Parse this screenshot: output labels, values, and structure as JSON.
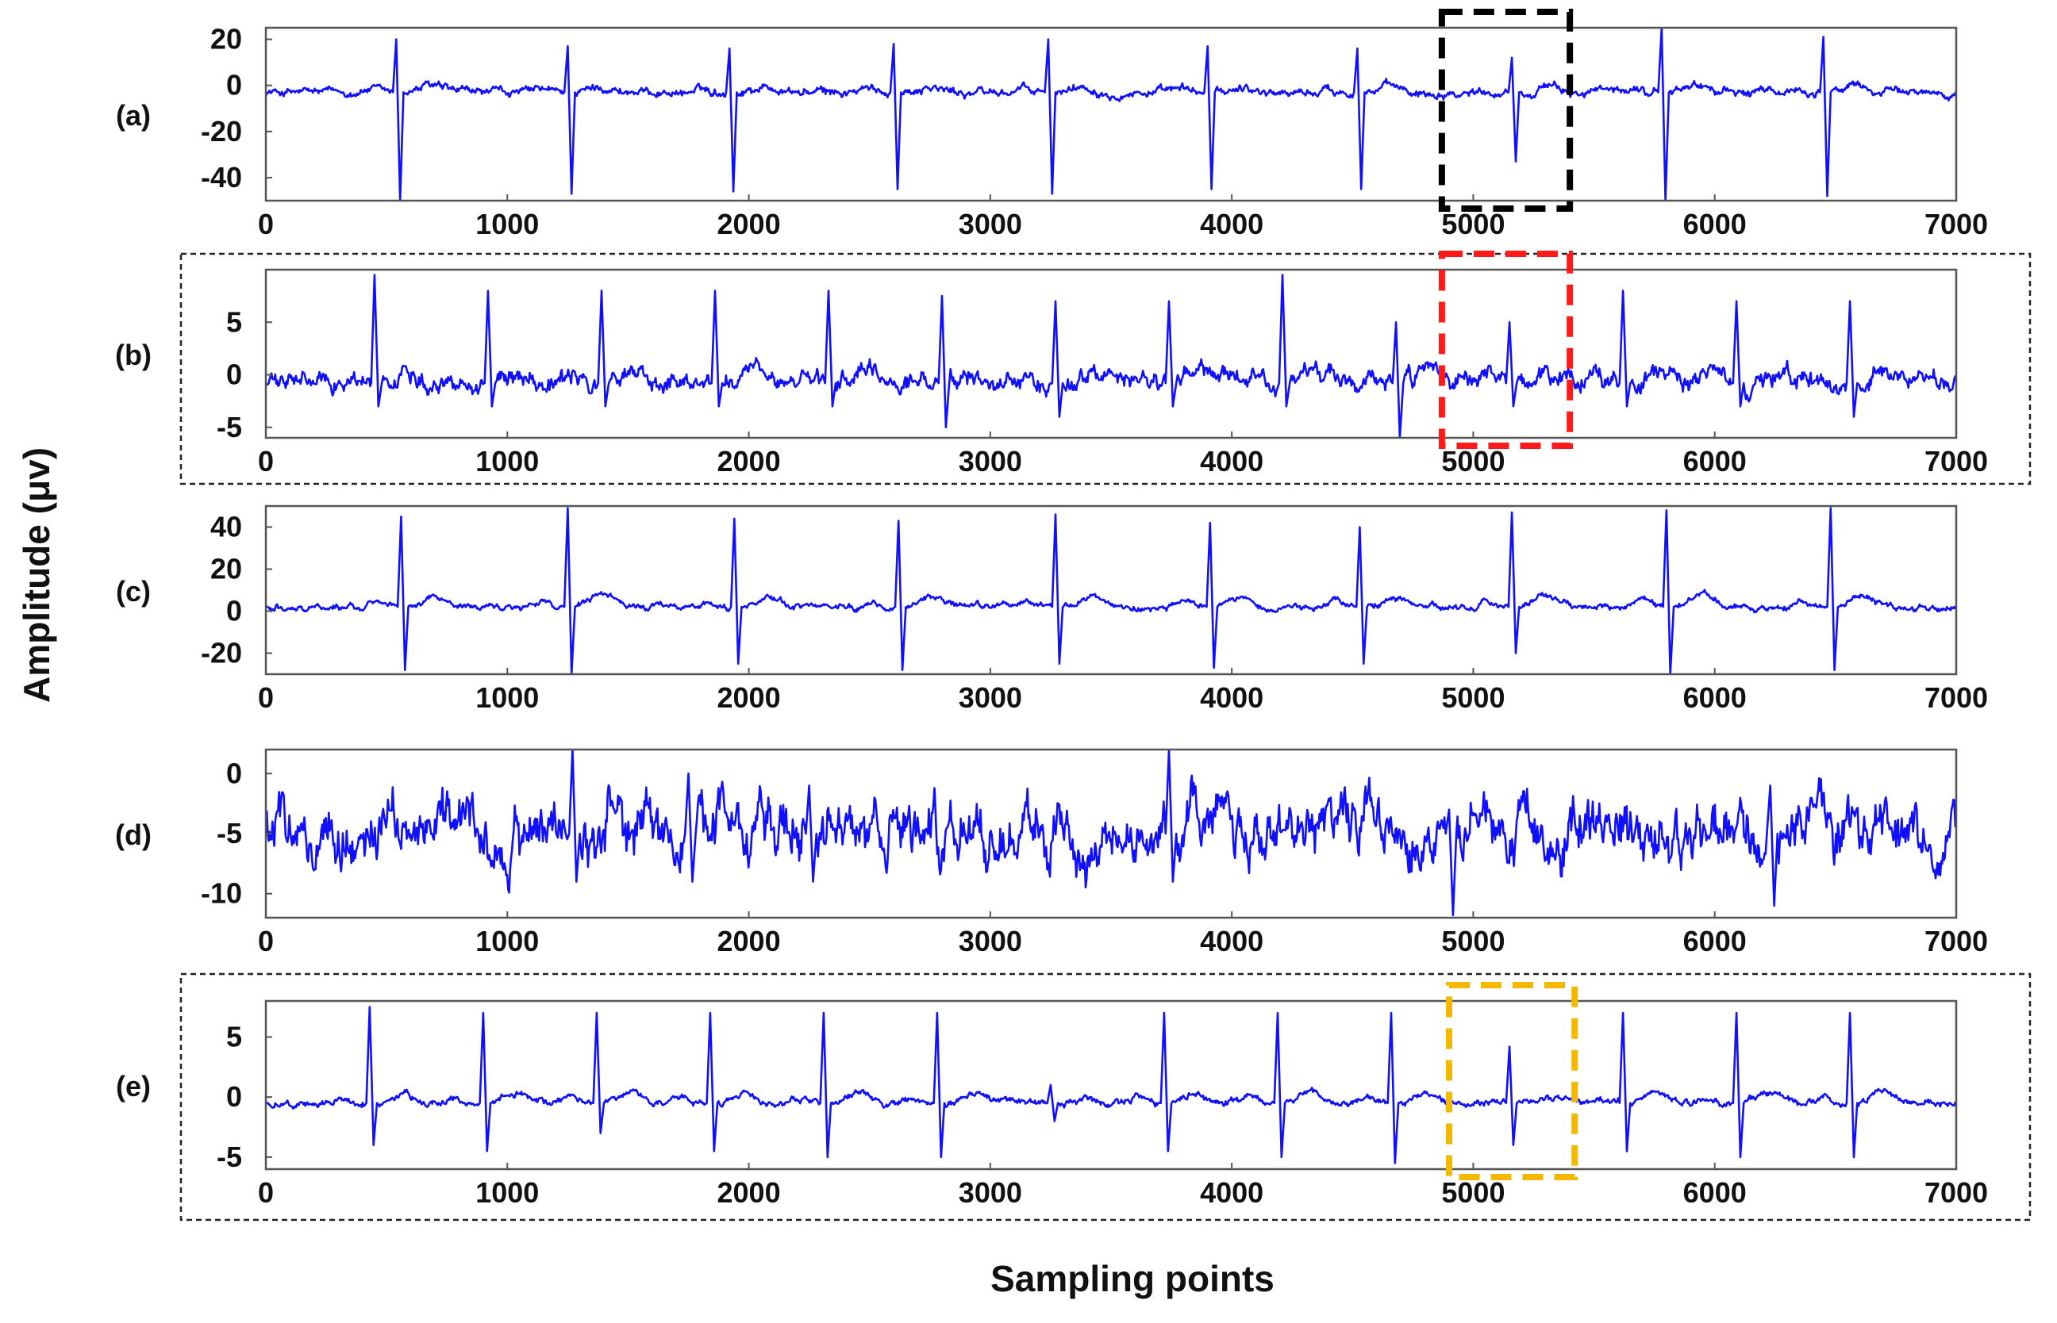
{
  "figure": {
    "ylabel": "Amplitude (μv)",
    "xlabel": "Sampling points",
    "signal_color": "#1010ff"
  },
  "chart_data": [
    {
      "type": "line",
      "panel": "(a)",
      "xlim": [
        0,
        7000
      ],
      "ylim": [
        -50,
        25
      ],
      "xticks": [
        0,
        1000,
        2000,
        3000,
        4000,
        5000,
        6000,
        7000
      ],
      "yticks": [
        20,
        0,
        -20,
        -40
      ],
      "baseline": -3,
      "noise": 2.2,
      "beats": [
        {
          "x": 540,
          "up": 20,
          "down": -50
        },
        {
          "x": 1250,
          "up": 17,
          "down": -47
        },
        {
          "x": 1920,
          "up": 16,
          "down": -46
        },
        {
          "x": 2600,
          "up": 18,
          "down": -45
        },
        {
          "x": 3240,
          "up": 20,
          "down": -47
        },
        {
          "x": 3900,
          "up": 17,
          "down": -45
        },
        {
          "x": 4520,
          "up": 16,
          "down": -45
        },
        {
          "x": 5160,
          "up": 12,
          "down": -33
        },
        {
          "x": 5780,
          "up": 25,
          "down": -50
        },
        {
          "x": 6450,
          "up": 21,
          "down": -48
        }
      ],
      "highlight": {
        "x0": 4870,
        "x1": 5400,
        "color": "#000000"
      },
      "frame": false
    },
    {
      "type": "line",
      "panel": "(b)",
      "xlim": [
        0,
        7000
      ],
      "ylim": [
        -6,
        10
      ],
      "xticks": [
        0,
        1000,
        2000,
        3000,
        4000,
        5000,
        6000,
        7000
      ],
      "yticks": [
        5,
        0,
        -5
      ],
      "baseline": -0.8,
      "noise": 1.1,
      "beats": [
        {
          "x": 450,
          "up": 9.5,
          "down": -3
        },
        {
          "x": 920,
          "up": 8,
          "down": -3
        },
        {
          "x": 1390,
          "up": 8,
          "down": -3
        },
        {
          "x": 1860,
          "up": 8,
          "down": -3
        },
        {
          "x": 2330,
          "up": 8,
          "down": -3
        },
        {
          "x": 2800,
          "up": 7.5,
          "down": -5
        },
        {
          "x": 3270,
          "up": 7,
          "down": -4
        },
        {
          "x": 3740,
          "up": 7,
          "down": -3
        },
        {
          "x": 4210,
          "up": 9.5,
          "down": -3
        },
        {
          "x": 4680,
          "up": 5,
          "down": -6
        },
        {
          "x": 5150,
          "up": 5,
          "down": -3
        },
        {
          "x": 5620,
          "up": 8,
          "down": -3
        },
        {
          "x": 6090,
          "up": 7,
          "down": -3
        },
        {
          "x": 6560,
          "up": 7,
          "down": -4
        }
      ],
      "highlight": {
        "x0": 4870,
        "x1": 5400,
        "color": "#ff1a1a"
      },
      "frame": true
    },
    {
      "type": "line",
      "panel": "(c)",
      "xlim": [
        0,
        7000
      ],
      "ylim": [
        -30,
        50
      ],
      "xticks": [
        0,
        1000,
        2000,
        3000,
        4000,
        5000,
        6000,
        7000
      ],
      "yticks": [
        40,
        20,
        0,
        -20
      ],
      "baseline": 2,
      "noise": 1.8,
      "beats": [
        {
          "x": 560,
          "up": 45,
          "down": -28
        },
        {
          "x": 1250,
          "up": 49,
          "down": -30
        },
        {
          "x": 1940,
          "up": 44,
          "down": -25
        },
        {
          "x": 2620,
          "up": 43,
          "down": -28
        },
        {
          "x": 3270,
          "up": 46,
          "down": -25
        },
        {
          "x": 3910,
          "up": 42,
          "down": -27
        },
        {
          "x": 4530,
          "up": 40,
          "down": -25
        },
        {
          "x": 5160,
          "up": 47,
          "down": -20
        },
        {
          "x": 5800,
          "up": 48,
          "down": -30
        },
        {
          "x": 6480,
          "up": 49,
          "down": -28
        }
      ],
      "highlight": null,
      "frame": false
    },
    {
      "type": "line",
      "panel": "(d)",
      "xlim": [
        0,
        7000
      ],
      "ylim": [
        -12,
        2
      ],
      "xticks": [
        0,
        1000,
        2000,
        3000,
        4000,
        5000,
        6000,
        7000
      ],
      "yticks": [
        0,
        -5,
        -10
      ],
      "baseline": -5,
      "noise": 2.8,
      "beats": [
        {
          "x": 1270,
          "up": 2,
          "down": -9
        },
        {
          "x": 1750,
          "up": 0,
          "down": -9
        },
        {
          "x": 2250,
          "up": -1,
          "down": -9
        },
        {
          "x": 3740,
          "up": 2,
          "down": -9
        },
        {
          "x": 4900,
          "up": -3,
          "down": -11.8
        },
        {
          "x": 6230,
          "up": -1,
          "down": -11
        }
      ],
      "highlight": null,
      "frame": false
    },
    {
      "type": "line",
      "panel": "(e)",
      "xlim": [
        0,
        7000
      ],
      "ylim": [
        -6,
        8
      ],
      "xticks": [
        0,
        1000,
        2000,
        3000,
        4000,
        5000,
        6000,
        7000
      ],
      "yticks": [
        5,
        0,
        -5
      ],
      "baseline": -0.5,
      "noise": 0.35,
      "beats": [
        {
          "x": 430,
          "up": 7.5,
          "down": -4
        },
        {
          "x": 900,
          "up": 7,
          "down": -4.5
        },
        {
          "x": 1370,
          "up": 7,
          "down": -3
        },
        {
          "x": 1840,
          "up": 7,
          "down": -4.5
        },
        {
          "x": 2310,
          "up": 7,
          "down": -5
        },
        {
          "x": 2780,
          "up": 7,
          "down": -5
        },
        {
          "x": 3250,
          "up": 1,
          "down": -2
        },
        {
          "x": 3720,
          "up": 7,
          "down": -4.5
        },
        {
          "x": 4190,
          "up": 7,
          "down": -5
        },
        {
          "x": 4660,
          "up": 7,
          "down": -5.5
        },
        {
          "x": 5150,
          "up": 4.2,
          "down": -4
        },
        {
          "x": 5620,
          "up": 7,
          "down": -4.5
        },
        {
          "x": 6090,
          "up": 7,
          "down": -5
        },
        {
          "x": 6560,
          "up": 7,
          "down": -5
        }
      ],
      "highlight": {
        "x0": 4900,
        "x1": 5420,
        "color": "#f5b800"
      },
      "frame": true
    }
  ]
}
